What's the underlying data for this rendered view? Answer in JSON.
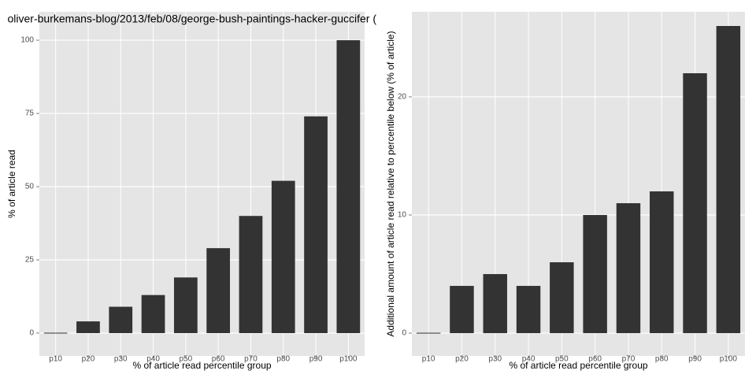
{
  "chart_data": [
    {
      "type": "bar",
      "title": "oliver-burkemans-blog/2013/feb/08/george-bush-paintings-hacker-guccifer (",
      "x_label": "% of article read percentile group",
      "y_label": "% of article read",
      "categories": [
        "p10",
        "p20",
        "p30",
        "p40",
        "p50",
        "p60",
        "p70",
        "p80",
        "p90",
        "p100"
      ],
      "values": [
        0,
        4,
        9,
        13,
        19,
        29,
        40,
        52,
        74,
        100
      ],
      "color": "#333333",
      "ylim": [
        -7.8,
        109.7
      ],
      "yticks": [
        0,
        25,
        50,
        75,
        100
      ],
      "grid": true
    },
    {
      "type": "bar",
      "x_label": "% of article read percentile group",
      "y_label": "Additional amount of article read relative to percentile below (% of article)",
      "categories": [
        "p10",
        "p20",
        "p30",
        "p40",
        "p50",
        "p60",
        "p70",
        "p80",
        "p90",
        "p100"
      ],
      "values": [
        0,
        4,
        5,
        4,
        6,
        10,
        11,
        12,
        22,
        26
      ],
      "color": "#333333",
      "ylim": [
        -1.93,
        27.2
      ],
      "yticks": [
        0,
        10,
        20
      ],
      "grid": true
    }
  ]
}
